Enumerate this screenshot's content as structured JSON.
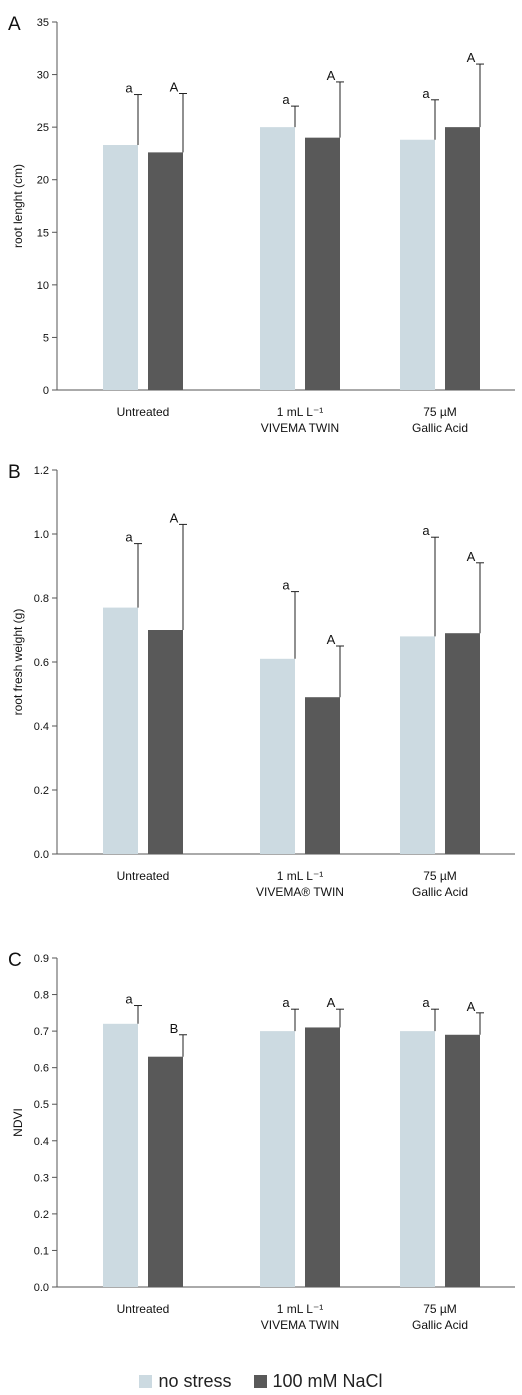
{
  "colors": {
    "no_stress": "#ccdae1",
    "nacl": "#595959",
    "axis": "#555555",
    "text": "#111111"
  },
  "legend": [
    {
      "label": "no stress",
      "color": "#ccdae1"
    },
    {
      "label": "100 mM NaCl",
      "color": "#595959"
    }
  ],
  "chart_data": [
    {
      "type": "bar",
      "panel": "A",
      "ylabel": "root lenght (cm)",
      "ylim": [
        0,
        35
      ],
      "ytick_step": 5,
      "ytick_decimals": 0,
      "categories": [
        [
          "Untreated"
        ],
        [
          "1 mL L⁻¹",
          "VIVEMA   TWIN"
        ],
        [
          "75 µM",
          "Gallic Acid"
        ]
      ],
      "series": [
        {
          "name": "no stress",
          "values": [
            23.3,
            25.0,
            23.8
          ],
          "errors": [
            4.8,
            2.0,
            3.8
          ],
          "letters": [
            "a",
            "a",
            "a"
          ]
        },
        {
          "name": "100 mM NaCl",
          "values": [
            22.6,
            24.0,
            25.0
          ],
          "errors": [
            5.6,
            5.3,
            6.0
          ],
          "letters": [
            "A",
            "A",
            "A"
          ]
        }
      ]
    },
    {
      "type": "bar",
      "panel": "B",
      "ylabel": "root fresh weight (g)",
      "ylim": [
        0,
        1.2
      ],
      "ytick_step": 0.2,
      "ytick_decimals": 1,
      "categories": [
        [
          "Untreated"
        ],
        [
          "1 mL L⁻¹",
          "VIVEMA® TWIN"
        ],
        [
          "75 µM",
          "Gallic Acid"
        ]
      ],
      "series": [
        {
          "name": "no stress",
          "values": [
            0.77,
            0.61,
            0.68
          ],
          "errors": [
            0.2,
            0.21,
            0.31
          ],
          "letters": [
            "a",
            "a",
            "a"
          ]
        },
        {
          "name": "100 mM NaCl",
          "values": [
            0.7,
            0.49,
            0.69
          ],
          "errors": [
            0.33,
            0.16,
            0.22
          ],
          "letters": [
            "A",
            "A",
            "A"
          ]
        }
      ]
    },
    {
      "type": "bar",
      "panel": "C",
      "ylabel": "NDVI",
      "ylim": [
        0,
        0.9
      ],
      "ytick_step": 0.1,
      "ytick_decimals": 1,
      "categories": [
        [
          "Untreated"
        ],
        [
          "1 mL L⁻¹",
          "VIVEMA   TWIN"
        ],
        [
          "75 µM",
          "Gallic Acid"
        ]
      ],
      "series": [
        {
          "name": "no stress",
          "values": [
            0.72,
            0.7,
            0.7
          ],
          "errors": [
            0.05,
            0.06,
            0.06
          ],
          "letters": [
            "a",
            "a",
            "a"
          ]
        },
        {
          "name": "100 mM NaCl",
          "values": [
            0.63,
            0.71,
            0.69
          ],
          "errors": [
            0.06,
            0.05,
            0.06
          ],
          "letters": [
            "B",
            "A",
            "A"
          ]
        }
      ]
    }
  ]
}
